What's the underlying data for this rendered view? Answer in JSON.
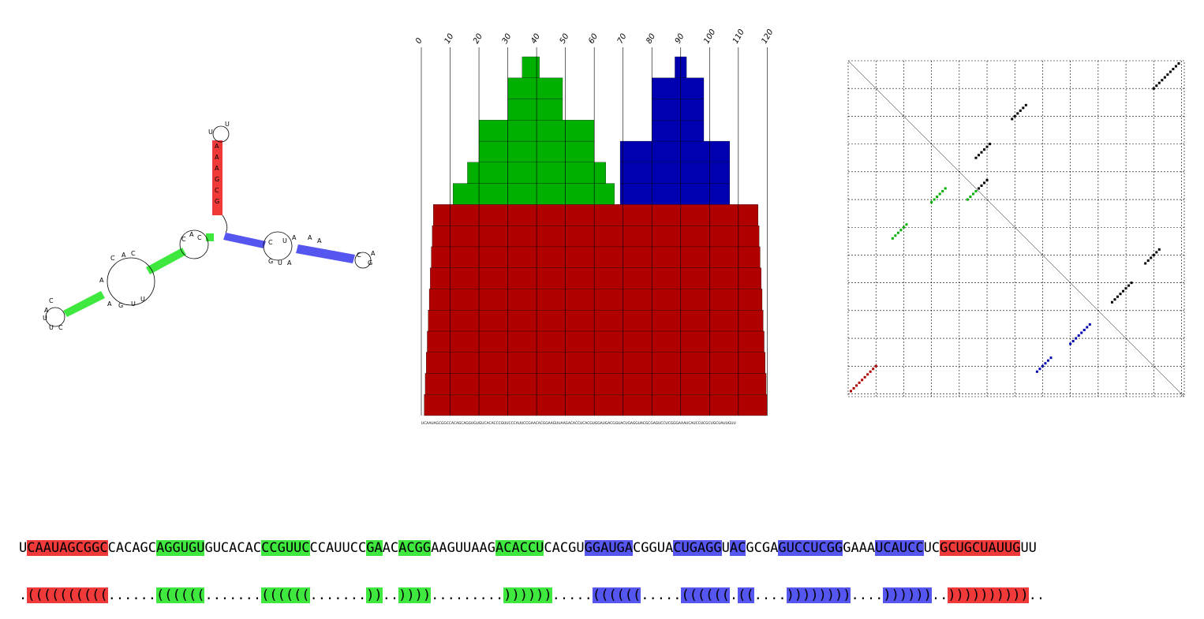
{
  "colors": {
    "red_stem": "#f03a3a",
    "green_stem": "#3fe83f",
    "blue_stem": "#5555f0",
    "mountain_red": "#b00000",
    "mountain_green": "#00b000",
    "mountain_blue": "#0000b0"
  },
  "sequence": "UCAAUAGCGGCCACAGCAGGUGUGUCACACCCGUUCCCAUUCCGAACACGGAAGUUAAGACACCUCACGUGGAUGACGGUACUGAGGUACGCGAGUCCUCGGGAAAUCAUCCUCGCUGCUAUUGUU",
  "structure": ".((((((((((......((((((.......((((((.......))..)))).........))))))......((((((.....((((((.((....))))))))....))))))..))))))))))..",
  "sequence_segments": [
    {
      "text": "U",
      "color": null
    },
    {
      "text": "CAAUAGCGGC",
      "color": "red"
    },
    {
      "text": "CACAGC",
      "color": null
    },
    {
      "text": "AGGUGU",
      "color": "green"
    },
    {
      "text": "GUCACAC",
      "color": null
    },
    {
      "text": "CCGUUC",
      "color": "green"
    },
    {
      "text": "CCAUUCC",
      "color": null
    },
    {
      "text": "GA",
      "color": "green"
    },
    {
      "text": "AC",
      "color": null
    },
    {
      "text": "ACGG",
      "color": "green"
    },
    {
      "text": "AAGUUAAG",
      "color": null
    },
    {
      "text": "ACACCU",
      "color": "green"
    },
    {
      "text": "CACGU",
      "color": null
    },
    {
      "text": "GGAUGA",
      "color": "blue"
    },
    {
      "text": "CGGUA",
      "color": null
    },
    {
      "text": "CUGAGG",
      "color": "blue"
    },
    {
      "text": "U",
      "color": null
    },
    {
      "text": "AC",
      "color": "blue"
    },
    {
      "text": "GCGA",
      "color": null
    },
    {
      "text": "GUCCUCGG",
      "color": "blue"
    },
    {
      "text": "GAAA",
      "color": null
    },
    {
      "text": "UCAUCC",
      "color": "blue"
    },
    {
      "text": "UC",
      "color": null
    },
    {
      "text": "GCUGCUAUUG",
      "color": "red"
    },
    {
      "text": "UU",
      "color": null
    }
  ],
  "structure_segments": [
    {
      "text": ".",
      "color": null
    },
    {
      "text": "((((((((((",
      "color": "red"
    },
    {
      "text": "......",
      "color": null
    },
    {
      "text": "((((((",
      "color": "green"
    },
    {
      "text": ".......",
      "color": null
    },
    {
      "text": "((((((",
      "color": "green"
    },
    {
      "text": ".......",
      "color": null
    },
    {
      "text": "))",
      "color": "green"
    },
    {
      "text": "..",
      "color": null
    },
    {
      "text": "))))",
      "color": "green"
    },
    {
      "text": ".........",
      "color": null
    },
    {
      "text": "))))))",
      "color": "green"
    },
    {
      "text": ".....",
      "color": null
    },
    {
      "text": "((((((",
      "color": "blue"
    },
    {
      "text": ".....",
      "color": null
    },
    {
      "text": "((((((",
      "color": "blue"
    },
    {
      "text": ".",
      "color": null
    },
    {
      "text": "((",
      "color": "blue"
    },
    {
      "text": "....",
      "color": null
    },
    {
      "text": "))))))))",
      "color": "blue"
    },
    {
      "text": "....",
      "color": null
    },
    {
      "text": "))))))",
      "color": "blue"
    },
    {
      "text": "..",
      "color": null
    },
    {
      "text": "))))))))))",
      "color": "red"
    },
    {
      "text": "..",
      "color": null
    }
  ],
  "mountain": {
    "ticks": [
      "0",
      "10",
      "20",
      "30",
      "40",
      "50",
      "60",
      "70",
      "80",
      "90",
      "100",
      "110",
      "120"
    ],
    "tick_values": [
      0,
      10,
      20,
      30,
      40,
      50,
      60,
      70,
      80,
      90,
      100,
      110,
      120
    ],
    "length": 121,
    "max_level": 17,
    "layers": [
      {
        "color": "red",
        "level_from": 0,
        "level_to": 10,
        "start": 1,
        "end": 120
      },
      {
        "color": "green",
        "level_from": 10,
        "level_to": 11,
        "start": 11,
        "end": 67
      },
      {
        "color": "green",
        "level_from": 11,
        "level_to": 12,
        "start": 16,
        "end": 64
      },
      {
        "color": "green",
        "level_from": 12,
        "level_to": 14,
        "start": 20,
        "end": 60
      },
      {
        "color": "green",
        "level_from": 14,
        "level_to": 16,
        "start": 30,
        "end": 49
      },
      {
        "color": "green",
        "level_from": 16,
        "level_to": 17,
        "start": 35,
        "end": 41
      },
      {
        "color": "blue",
        "level_from": 10,
        "level_to": 13,
        "start": 69,
        "end": 107
      },
      {
        "color": "blue",
        "level_from": 13,
        "level_to": 16,
        "start": 80,
        "end": 98
      },
      {
        "color": "blue",
        "level_from": 16,
        "level_to": 17,
        "start": 88,
        "end": 92
      }
    ]
  },
  "dotplot": {
    "length": 121,
    "grid_step": 10,
    "pairs": [
      {
        "color": "red",
        "i": 1,
        "j": 119,
        "n": 10
      },
      {
        "color": "green",
        "i": 16,
        "j": 64,
        "n": 6
      },
      {
        "color": "green",
        "i": 30,
        "j": 51,
        "n": 6
      },
      {
        "color": "green",
        "i": 43,
        "j": 50,
        "n": 4
      },
      {
        "color": "blue",
        "i": 68,
        "j": 112,
        "n": 6
      },
      {
        "color": "blue",
        "i": 80,
        "j": 102,
        "n": 8
      }
    ]
  }
}
